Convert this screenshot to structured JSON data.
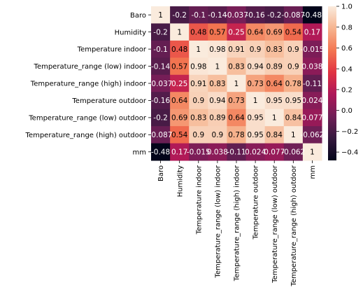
{
  "chart_data": {
    "type": "heatmap",
    "title": "",
    "xlabel": "",
    "ylabel": "",
    "labels": [
      "Baro",
      "Humidity",
      "Temperature indoor",
      "Temperature_range (low) indoor",
      "Temperature_range (high) indoor",
      "Temperature outdoor",
      "Temperature_range (low) outdoor",
      "Temperature_range (high) outdoor",
      "mm"
    ],
    "values": [
      [
        1,
        -0.2,
        -0.1,
        -0.14,
        -0.037,
        -0.16,
        -0.2,
        -0.087,
        -0.48
      ],
      [
        -0.2,
        1,
        0.48,
        0.57,
        0.25,
        0.64,
        0.69,
        0.54,
        0.17
      ],
      [
        -0.1,
        0.48,
        1,
        0.98,
        0.91,
        0.9,
        0.83,
        0.9,
        -0.015
      ],
      [
        -0.14,
        0.57,
        0.98,
        1,
        0.83,
        0.94,
        0.89,
        0.9,
        0.038
      ],
      [
        -0.037,
        0.25,
        0.91,
        0.83,
        1,
        0.73,
        0.64,
        0.78,
        -0.11
      ],
      [
        -0.16,
        0.64,
        0.9,
        0.94,
        0.73,
        1,
        0.95,
        0.95,
        0.024
      ],
      [
        -0.2,
        0.69,
        0.83,
        0.89,
        0.64,
        0.95,
        1,
        0.84,
        0.077
      ],
      [
        -0.087,
        0.54,
        0.9,
        0.9,
        0.78,
        0.95,
        0.84,
        1,
        -0.062
      ],
      [
        -0.48,
        0.17,
        -0.015,
        0.038,
        -0.11,
        0.024,
        0.077,
        -0.062,
        1
      ]
    ],
    "annotations": [
      [
        "1",
        "-0.2",
        "-0.1",
        "-0.14",
        "-0.037",
        "-0.16",
        "-0.2",
        "-0.087",
        "-0.48"
      ],
      [
        "-0.2",
        "1",
        "0.48",
        "0.57",
        "0.25",
        "0.64",
        "0.69",
        "0.54",
        "0.17"
      ],
      [
        "-0.1",
        "0.48",
        "1",
        "0.98",
        "0.91",
        "0.9",
        "0.83",
        "0.9",
        "-0.015"
      ],
      [
        "-0.14",
        "0.57",
        "0.98",
        "1",
        "0.83",
        "0.94",
        "0.89",
        "0.9",
        "0.038"
      ],
      [
        "-0.037",
        "0.25",
        "0.91",
        "0.83",
        "1",
        "0.73",
        "0.64",
        "0.78",
        "-0.11"
      ],
      [
        "-0.16",
        "0.64",
        "0.9",
        "0.94",
        "0.73",
        "1",
        "0.95",
        "0.95",
        "0.024"
      ],
      [
        "-0.2",
        "0.69",
        "0.83",
        "0.89",
        "0.64",
        "0.95",
        "1",
        "0.84",
        "0.077"
      ],
      [
        "-0.087",
        "0.54",
        "0.9",
        "0.9",
        "0.78",
        "0.95",
        "0.84",
        "1",
        "-0.062"
      ],
      [
        "-0.48",
        "0.17",
        "-0.015",
        "0.038",
        "-0.11",
        "0.024",
        "0.077",
        "-0.062",
        "1"
      ]
    ],
    "colorbar": {
      "range": [
        -0.48,
        1.0
      ],
      "ticks": [
        -0.4,
        -0.2,
        0.0,
        0.2,
        0.4,
        0.6,
        0.8,
        1.0
      ],
      "tick_labels": [
        "−0.4",
        "−0.2",
        "0.0",
        "0.2",
        "0.4",
        "0.6",
        "0.8",
        "1.0"
      ]
    },
    "colormap": "rocket",
    "colormap_stops": [
      "#03051a",
      "#35193e",
      "#701f57",
      "#ad1759",
      "#e13342",
      "#f37651",
      "#f6b48f",
      "#faebdd"
    ],
    "annotation_colors": {
      "light_bg": "#000000",
      "dark_bg": "#ffffff"
    }
  }
}
